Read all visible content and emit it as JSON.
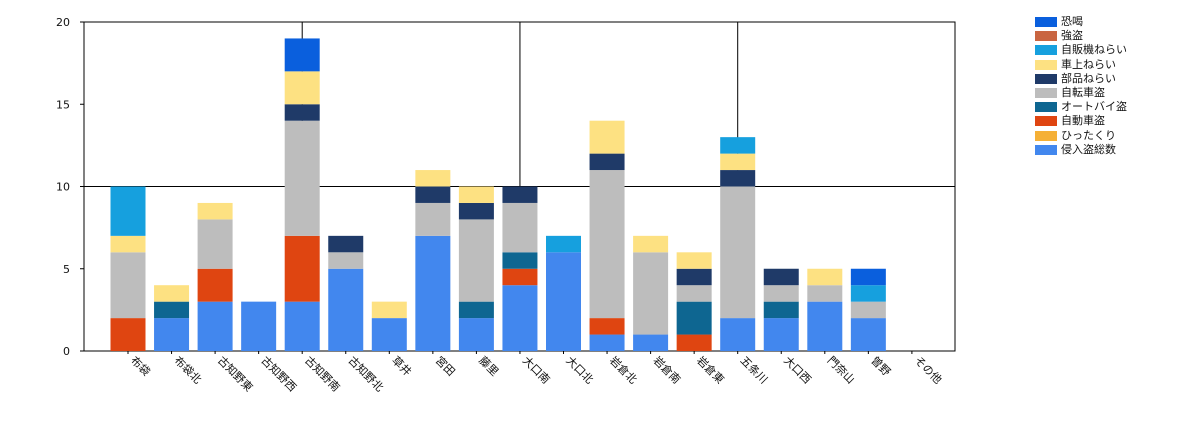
{
  "chart_data": {
    "type": "bar",
    "stacked": true,
    "title": "",
    "xlabel": "",
    "ylabel": "",
    "ylim": [
      0,
      20
    ],
    "yticks": [
      0,
      5,
      10,
      15,
      20
    ],
    "grid": "partial",
    "legend_position": "right",
    "categories": [
      "布袋",
      "布袋北",
      "古知野東",
      "古知野西",
      "古知野南",
      "古知野北",
      "草井",
      "宮田",
      "藤里",
      "大口南",
      "大口北",
      "岩倉北",
      "岩倉南",
      "岩倉東",
      "五条川",
      "大口西",
      "門奈山",
      "曽野",
      "その他"
    ],
    "series": [
      {
        "name": "侵入盗総数",
        "color": "#4287EE",
        "values": [
          0,
          2,
          3,
          3,
          3,
          5,
          2,
          7,
          2,
          4,
          6,
          1,
          1,
          0,
          2,
          2,
          3,
          2,
          0
        ]
      },
      {
        "name": "ひったくり",
        "color": "#F5B036",
        "values": [
          0,
          0,
          0,
          0,
          0,
          0,
          0,
          0,
          0,
          0,
          0,
          0,
          0,
          0,
          0,
          0,
          0,
          0,
          0
        ]
      },
      {
        "name": "自動車盗",
        "color": "#DF4511",
        "values": [
          2,
          0,
          2,
          0,
          4,
          0,
          0,
          0,
          0,
          1,
          0,
          1,
          0,
          1,
          0,
          0,
          0,
          0,
          0
        ]
      },
      {
        "name": "オートバイ盗",
        "color": "#0E6691",
        "values": [
          0,
          1,
          0,
          0,
          0,
          0,
          0,
          0,
          1,
          1,
          0,
          0,
          0,
          2,
          0,
          1,
          0,
          0,
          0
        ]
      },
      {
        "name": "自転車盗",
        "color": "#BDBDBD",
        "values": [
          4,
          0,
          3,
          0,
          7,
          1,
          0,
          2,
          5,
          3,
          0,
          9,
          5,
          1,
          8,
          1,
          1,
          1,
          0
        ]
      },
      {
        "name": "部品ねらい",
        "color": "#1F3A68",
        "values": [
          0,
          0,
          0,
          0,
          1,
          1,
          0,
          1,
          1,
          1,
          0,
          1,
          0,
          1,
          1,
          1,
          0,
          0,
          0
        ]
      },
      {
        "name": "車上ねらい",
        "color": "#FDE182",
        "values": [
          1,
          1,
          1,
          0,
          2,
          0,
          1,
          1,
          1,
          0,
          0,
          2,
          1,
          1,
          1,
          0,
          1,
          0,
          0
        ]
      },
      {
        "name": "自販機ねらい",
        "color": "#16A0DE",
        "values": [
          3,
          0,
          0,
          0,
          0,
          0,
          0,
          0,
          0,
          0,
          1,
          0,
          0,
          0,
          1,
          0,
          0,
          1,
          0
        ]
      },
      {
        "name": "強盗",
        "color": "#C96541",
        "values": [
          0,
          0,
          0,
          0,
          0,
          0,
          0,
          0,
          0,
          0,
          0,
          0,
          0,
          0,
          0,
          0,
          0,
          0,
          0
        ]
      },
      {
        "name": "恐喝",
        "color": "#0A5FDD",
        "values": [
          0,
          0,
          0,
          0,
          2,
          0,
          0,
          0,
          0,
          0,
          0,
          0,
          0,
          0,
          0,
          0,
          0,
          1,
          0
        ]
      }
    ]
  }
}
